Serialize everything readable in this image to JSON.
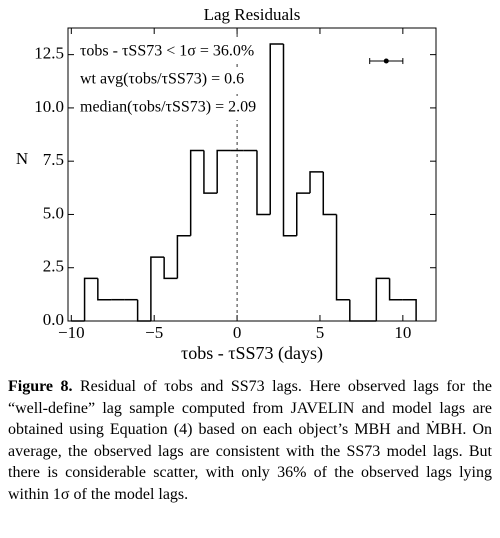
{
  "chart_data": {
    "type": "histogram",
    "title": "Lag Residuals",
    "xlabel": "τobs - τSS73 (days)",
    "ylabel": "N",
    "bins": [
      -10,
      -9.2,
      -8.4,
      -7.6,
      -6.8,
      -6,
      -5.2,
      -4.4,
      -3.6,
      -2.8,
      -2,
      -1.2,
      -0.4,
      0.4,
      1.2,
      2,
      2.8,
      3.6,
      4.4,
      5.2,
      6,
      6.8,
      7.6,
      8.4,
      9.2,
      10,
      10.8
    ],
    "counts": [
      0,
      2,
      1,
      1,
      1,
      0,
      3,
      2,
      4,
      8,
      6,
      8,
      8,
      8,
      5,
      13,
      4,
      6,
      7,
      5,
      1,
      0,
      0,
      2,
      1,
      1
    ],
    "color": "#000000",
    "xlim": [
      -10.2,
      12
    ],
    "ylim": [
      0,
      13.75
    ],
    "xticks": [
      {
        "value": -10,
        "label": "−10"
      },
      {
        "value": -5,
        "label": "−5"
      },
      0,
      5,
      10
    ],
    "yticks": [
      {
        "value": 0,
        "label": "0.0"
      },
      2.5,
      {
        "value": 5,
        "label": "5.0"
      },
      7.5,
      {
        "value": 10,
        "label": "10.0"
      },
      12.5
    ],
    "reference_line_x": 0,
    "error_point": {
      "x": 9,
      "y": 12.2,
      "xerr": 1
    },
    "annotations": [
      "τobs - τSS73 < 1σ = 36.0%",
      "wt avg(τobs/τSS73) = 0.6",
      "median(τobs/τSS73) = 2.09"
    ]
  },
  "caption": {
    "label": "Figure 8.",
    "text": "Residual of τobs and SS73 lags. Here observed lags for the “well-define” lag sample computed from JAVELIN and model lags are obtained using Equation (4) based on each object’s MBH and ṀBH. On average, the observed lags are consistent with the SS73 model lags. But there is considerable scatter, with only 36% of the observed lags lying within 1σ of the model lags."
  }
}
